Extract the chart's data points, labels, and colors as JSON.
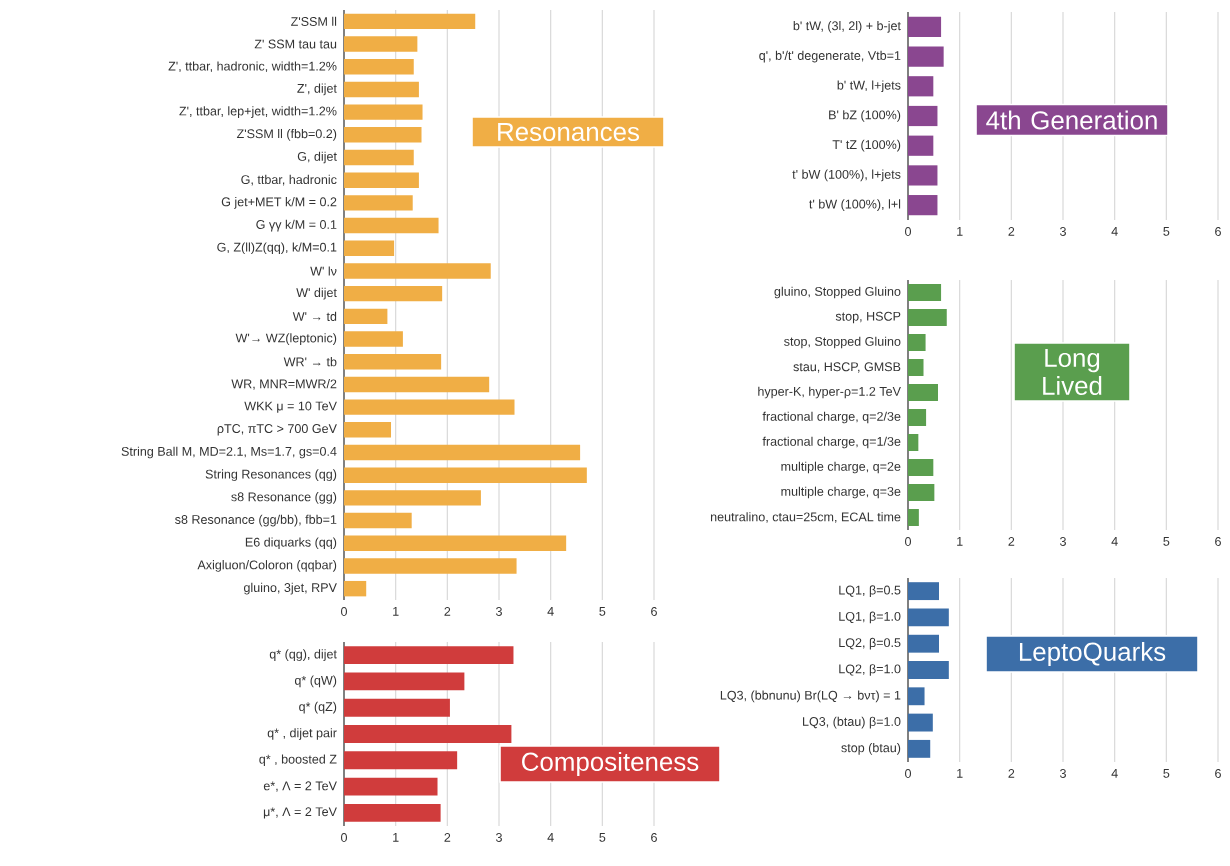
{
  "chart_data": [
    {
      "type": "bar",
      "orientation": "horizontal",
      "title": "Resonances",
      "color": "#f0ae45",
      "xlim": [
        0,
        6
      ],
      "xticks": [
        0,
        1,
        2,
        3,
        4,
        5,
        6
      ],
      "grid": "x",
      "categories": [
        "Z'SSM ll",
        "Z' SSM tau tau",
        "Z', ttbar, hadronic, width=1.2%",
        "Z', dijet",
        "Z', ttbar, lep+jet, width=1.2%",
        "Z'SSM ll (fbb=0.2)",
        "G, dijet",
        "G, ttbar, hadronic",
        "G jet+MET k/M = 0.2",
        "G γγ k/M = 0.1",
        "G, Z(ll)Z(qq), k/M=0.1",
        "W' lν",
        "W' dijet",
        "W' → td",
        "W'→ WZ(leptonic)",
        "WR' → tb",
        "WR, MNR=MWR/2",
        "WKK μ = 10 TeV",
        "ρTC, πTC > 700 GeV",
        "String Ball M, MD=2.1, Ms=1.7, gs=0.4",
        "String Resonances (qg)",
        "s8 Resonance (gg)",
        "s8 Resonance (gg/bb), fbb=1",
        "E6 diquarks (qq)",
        "Axigluon/Coloron (qqbar)",
        "gluino, 3jet, RPV"
      ],
      "values": [
        2.54,
        1.42,
        1.35,
        1.45,
        1.52,
        1.5,
        1.35,
        1.45,
        1.33,
        1.83,
        0.97,
        2.84,
        1.9,
        0.84,
        1.14,
        1.88,
        2.81,
        3.3,
        0.91,
        4.57,
        4.7,
        2.65,
        1.31,
        4.3,
        3.34,
        0.43
      ]
    },
    {
      "type": "bar",
      "orientation": "horizontal",
      "title": "Compositeness",
      "color": "#d03c3c",
      "xlim": [
        0,
        6
      ],
      "xticks": [
        0,
        1,
        2,
        3,
        4,
        5,
        6
      ],
      "grid": "x",
      "categories": [
        "q* (qg), dijet",
        "q* (qW)",
        "q* (qZ)",
        "q* , dijet pair",
        "q* , boosted Z",
        "e*, Λ = 2 TeV",
        "μ*, Λ = 2 TeV"
      ],
      "values": [
        3.28,
        2.33,
        2.05,
        3.24,
        2.19,
        1.81,
        1.87
      ]
    },
    {
      "type": "bar",
      "orientation": "horizontal",
      "title": "4th Generation",
      "color": "#8a4790",
      "xlim": [
        0,
        6
      ],
      "xticks": [
        0,
        1,
        2,
        3,
        4,
        5,
        6
      ],
      "grid": "x",
      "categories": [
        "b'    tW, (3l, 2l) + b-jet",
        "q', b'/t' degenerate, Vtb=1",
        "b'    tW, l+jets",
        "B'    bZ (100%)",
        "T'    tZ (100%)",
        "t'    bW (100%), l+jets",
        "t'    bW (100%), l+l"
      ],
      "values": [
        0.64,
        0.69,
        0.49,
        0.57,
        0.49,
        0.57,
        0.57
      ]
    },
    {
      "type": "bar",
      "orientation": "horizontal",
      "title": "Long Lived",
      "color": "#5a9e4e",
      "xlim": [
        0,
        6
      ],
      "xticks": [
        0,
        1,
        2,
        3,
        4,
        5,
        6
      ],
      "grid": "x",
      "categories": [
        "gluino, Stopped Gluino",
        "stop, HSCP",
        "stop, Stopped Gluino",
        "stau, HSCP, GMSB",
        "hyper-K, hyper-ρ=1.2 TeV",
        "fractional charge, q=2/3e",
        "fractional charge, q=1/3e",
        "multiple charge, q=2e",
        "multiple charge, q=3e",
        "neutralino, ctau=25cm, ECAL time"
      ],
      "values": [
        0.64,
        0.75,
        0.34,
        0.3,
        0.58,
        0.35,
        0.2,
        0.49,
        0.51,
        0.21
      ]
    },
    {
      "type": "bar",
      "orientation": "horizontal",
      "title": "LeptoQuarks",
      "color": "#3c6ea8",
      "xlim": [
        0,
        6
      ],
      "xticks": [
        0,
        1,
        2,
        3,
        4,
        5,
        6
      ],
      "grid": "x",
      "categories": [
        "LQ1, β=0.5",
        "LQ1, β=1.0",
        "LQ2, β=0.5",
        "LQ2, β=1.0",
        "LQ3, (bbnunu) Br(LQ → bντ) = 1",
        "LQ3, (btau) β=1.0",
        "stop (btau)"
      ],
      "values": [
        0.6,
        0.79,
        0.6,
        0.79,
        0.32,
        0.48,
        0.43
      ]
    }
  ]
}
